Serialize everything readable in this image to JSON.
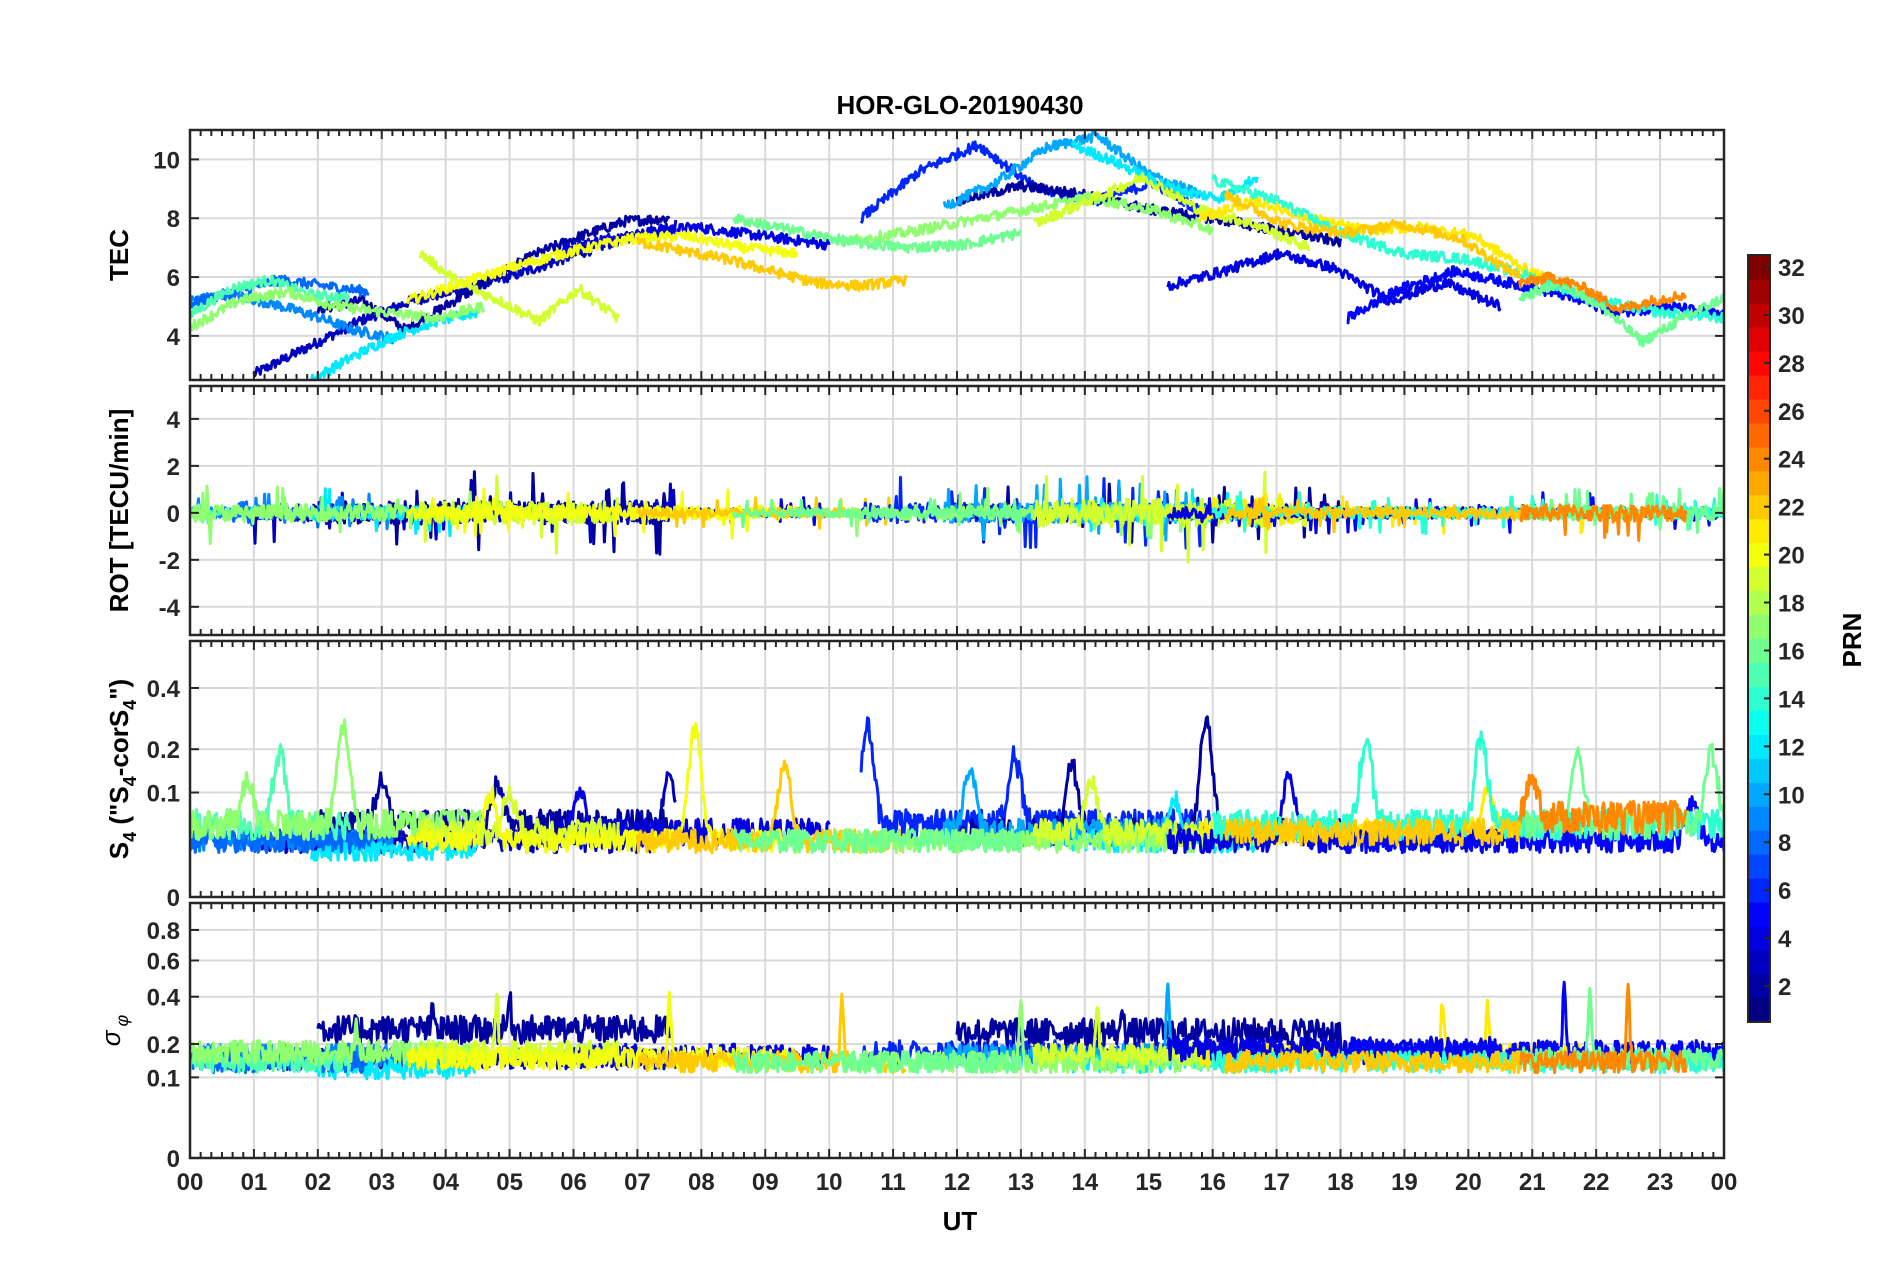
{
  "chart_data": {
    "type": "line",
    "title": "HOR-GLO-20190430",
    "xlabel": "UT",
    "x_ticks": [
      "00",
      "01",
      "02",
      "03",
      "04",
      "05",
      "06",
      "07",
      "08",
      "09",
      "10",
      "11",
      "12",
      "13",
      "14",
      "15",
      "16",
      "17",
      "18",
      "19",
      "20",
      "21",
      "22",
      "23",
      "00"
    ],
    "xlim": [
      0,
      24
    ],
    "grid": true,
    "panels": [
      {
        "id": "tec",
        "ylabel": "TEC",
        "ylim": [
          2.5,
          11
        ],
        "yticks": [
          4,
          6,
          8,
          10
        ],
        "tick_labels": [
          "4",
          "6",
          "8",
          "10"
        ]
      },
      {
        "id": "rot",
        "ylabel": "ROT [TECU/min]",
        "ylim": [
          -5.2,
          5.4
        ],
        "yticks": [
          -4,
          -2,
          0,
          2,
          4
        ],
        "tick_labels": [
          "-4",
          "-2",
          "0",
          "2",
          "4"
        ]
      },
      {
        "id": "s4",
        "ylabel_main": "S",
        "ylabel_sub": "4",
        "ylabel_tail": " (\"S",
        "ylabel_sub2": "4",
        "ylabel_tail2": "-corS",
        "ylabel_sub3": "4",
        "ylabel_end": "\")",
        "ylim": [
          0,
          0.6
        ],
        "yticks": [
          0,
          0.1,
          0.2,
          0.4
        ],
        "tick_labels": [
          "0",
          "0.1",
          "0.2",
          "0.4"
        ],
        "scale": "sqrt"
      },
      {
        "id": "sigma",
        "ylabel_main": "σ",
        "ylabel_sub": "φ",
        "ylim": [
          0,
          1
        ],
        "yticks": [
          0,
          0.1,
          0.2,
          0.4,
          0.6,
          0.8
        ],
        "tick_labels": [
          "0",
          "0.1",
          "0.2",
          "0.4",
          "0.6",
          "0.8"
        ],
        "scale": "sqrt"
      }
    ],
    "colorbar": {
      "label": "PRN",
      "range": [
        1,
        32
      ],
      "ticks": [
        "2",
        "4",
        "6",
        "8",
        "10",
        "12",
        "14",
        "16",
        "18",
        "20",
        "22",
        "24",
        "26",
        "28",
        "30",
        "32"
      ],
      "colormap": "jet"
    },
    "series": [
      {
        "prn": 3,
        "t0": 1.0,
        "t1": 7.6,
        "tec": [
          2.7,
          3.6,
          4.5,
          5.2,
          5.6,
          6.1,
          6.7,
          7.3,
          7.8
        ],
        "rot_amp": 0.6,
        "s4_base": 0.03,
        "s4_peaks": [
          [
            7.5,
            0.12
          ]
        ],
        "sig_base": 0.15,
        "sig_peaks": []
      },
      {
        "prn": 2,
        "t0": 2.0,
        "t1": 7.5,
        "tec": [
          4.9,
          5.2,
          4.2,
          5.1,
          6.0,
          6.8,
          7.4,
          7.9,
          8.0
        ],
        "rot_amp": 0.8,
        "s4_base": 0.05,
        "s4_peaks": [
          [
            3.0,
            0.08
          ],
          [
            4.8,
            0.07
          ]
        ],
        "sig_base": 0.25,
        "sig_peaks": [
          [
            5.0,
            0.4
          ],
          [
            3.8,
            0.33
          ]
        ]
      },
      {
        "prn": 4,
        "t0": 5.8,
        "t1": 10.0,
        "tec": [
          6.9,
          7.3,
          7.5,
          7.7,
          7.5,
          7.3,
          7.1
        ],
        "rot_amp": 0.3,
        "s4_base": 0.04,
        "s4_peaks": [
          [
            6.1,
            0.07
          ]
        ],
        "sig_base": 0.16,
        "sig_peaks": []
      },
      {
        "prn": 9,
        "t0": 0.0,
        "t1": 3.2,
        "tec": [
          5.2,
          5.4,
          5.1,
          4.7,
          4.2,
          3.9
        ],
        "rot_amp": 0.4,
        "s4_base": 0.03,
        "s4_peaks": [],
        "sig_base": 0.16,
        "sig_peaks": []
      },
      {
        "prn": 12,
        "t0": 1.9,
        "t1": 4.5,
        "tec": [
          2.5,
          3.3,
          4.0,
          4.5,
          4.8
        ],
        "rot_amp": 0.5,
        "s4_base": 0.02,
        "s4_peaks": [],
        "sig_base": 0.12,
        "sig_peaks": []
      },
      {
        "prn": 8,
        "t0": 0.0,
        "t1": 2.8,
        "tec": [
          5.1,
          5.5,
          5.9,
          5.7,
          5.5
        ],
        "rot_amp": 0.3,
        "s4_base": 0.03,
        "s4_peaks": [],
        "sig_base": 0.14,
        "sig_peaks": []
      },
      {
        "prn": 15,
        "t0": 0.0,
        "t1": 2.5,
        "tec": [
          4.7,
          5.6,
          5.9,
          5.4,
          5.3
        ],
        "rot_amp": 0.3,
        "s4_base": 0.05,
        "s4_peaks": [
          [
            1.4,
            0.16
          ]
        ],
        "sig_base": 0.14,
        "sig_peaks": []
      },
      {
        "prn": 17,
        "t0": 0.0,
        "t1": 4.6,
        "tec": [
          4.3,
          5.2,
          5.5,
          5.0,
          4.8,
          4.6,
          5.0
        ],
        "rot_amp": 0.6,
        "s4_base": 0.05,
        "s4_peaks": [
          [
            0.9,
            0.09
          ],
          [
            2.4,
            0.25
          ]
        ],
        "sig_base": 0.17,
        "sig_peaks": [
          [
            2.6,
            0.27
          ]
        ]
      },
      {
        "prn": 19,
        "t0": 3.6,
        "t1": 6.7,
        "tec": [
          6.8,
          5.8,
          5.2,
          4.5,
          5.6,
          4.6
        ],
        "rot_amp": 0.8,
        "s4_base": 0.04,
        "s4_peaks": [
          [
            5.0,
            0.07
          ]
        ],
        "sig_base": 0.17,
        "sig_peaks": [
          [
            4.8,
            0.42
          ]
        ]
      },
      {
        "prn": 20,
        "t0": 3.4,
        "t1": 9.5,
        "tec": [
          5.2,
          5.8,
          6.4,
          6.9,
          7.3,
          7.4,
          7.0,
          6.8
        ],
        "rot_amp": 0.5,
        "s4_base": 0.03,
        "s4_peaks": [
          [
            7.9,
            0.27
          ],
          [
            4.7,
            0.08
          ]
        ],
        "sig_base": 0.15,
        "sig_peaks": [
          [
            7.5,
            0.42
          ]
        ]
      },
      {
        "prn": 22,
        "t0": 7.0,
        "t1": 11.2,
        "tec": [
          7.2,
          6.9,
          6.6,
          6.2,
          5.8,
          5.7,
          5.9
        ],
        "rot_amp": 0.3,
        "s4_base": 0.03,
        "s4_peaks": [
          [
            9.3,
            0.15
          ]
        ],
        "sig_base": 0.14,
        "sig_peaks": [
          [
            10.2,
            0.42
          ]
        ]
      },
      {
        "prn": 6,
        "t0": 10.5,
        "t1": 16.0,
        "tec": [
          8.0,
          9.6,
          10.5,
          9.0,
          8.6,
          9.2,
          8.0
        ],
        "rot_amp": 0.7,
        "s4_base": 0.05,
        "s4_peaks": [
          [
            10.6,
            0.25
          ],
          [
            12.9,
            0.15
          ]
        ],
        "sig_base": 0.17,
        "sig_peaks": []
      },
      {
        "prn": 2,
        "t0": 12.0,
        "t1": 18.0,
        "tec": [
          8.6,
          9.1,
          8.8,
          8.3,
          8.0,
          7.6,
          7.2
        ],
        "rot_amp": 0.6,
        "s4_base": 0.04,
        "s4_peaks": [
          [
            13.8,
            0.14
          ],
          [
            15.9,
            0.27
          ]
        ],
        "sig_base": 0.24,
        "sig_peaks": [
          [
            14.6,
            0.33
          ],
          [
            15.7,
            0.26
          ]
        ]
      },
      {
        "prn": 10,
        "t0": 11.8,
        "t1": 15.8,
        "tec": [
          8.4,
          9.2,
          10.4,
          10.8,
          9.5,
          8.8
        ],
        "rot_amp": 0.7,
        "s4_base": 0.04,
        "s4_peaks": [
          [
            12.2,
            0.12
          ]
        ],
        "sig_base": 0.16,
        "sig_peaks": [
          [
            15.3,
            0.45
          ]
        ]
      },
      {
        "prn": 12,
        "t0": 13.8,
        "t1": 16.7,
        "tec": [
          10.5,
          10.0,
          9.4,
          8.9,
          8.7,
          9.4
        ],
        "rot_amp": 0.6,
        "s4_base": 0.03,
        "s4_peaks": [
          [
            15.4,
            0.07
          ]
        ],
        "sig_base": 0.14,
        "sig_peaks": []
      },
      {
        "prn": 17,
        "t0": 10.2,
        "t1": 16.0,
        "tec": [
          7.2,
          7.5,
          7.9,
          8.3,
          8.7,
          8.3,
          7.6
        ],
        "rot_amp": 0.5,
        "s4_base": 0.03,
        "s4_peaks": [],
        "sig_base": 0.14,
        "sig_peaks": [
          [
            13.0,
            0.38
          ]
        ]
      },
      {
        "prn": 19,
        "t0": 13.2,
        "t1": 17.5,
        "tec": [
          7.8,
          8.6,
          9.4,
          8.3,
          7.8,
          7.0
        ],
        "rot_amp": 1.0,
        "s4_base": 0.04,
        "s4_peaks": [
          [
            14.1,
            0.09
          ]
        ],
        "sig_base": 0.16,
        "sig_peaks": [
          [
            14.2,
            0.36
          ]
        ]
      },
      {
        "prn": 16,
        "t0": 8.5,
        "t1": 13.0,
        "tec": [
          8.0,
          7.6,
          7.2,
          7.0,
          7.1,
          7.5
        ],
        "rot_amp": 0.3,
        "s4_base": 0.03,
        "s4_peaks": [],
        "sig_base": 0.14,
        "sig_peaks": []
      },
      {
        "prn": 21,
        "t0": 15.8,
        "t1": 21.8,
        "tec": [
          8.0,
          8.6,
          8.0,
          7.6,
          7.7,
          7.4,
          6.2,
          5.4
        ],
        "rot_amp": 0.4,
        "s4_base": 0.04,
        "s4_peaks": [
          [
            20.3,
            0.07
          ]
        ],
        "sig_base": 0.16,
        "sig_peaks": [
          [
            19.6,
            0.38
          ],
          [
            20.3,
            0.35
          ]
        ]
      },
      {
        "prn": 4,
        "t0": 15.3,
        "t1": 20.5,
        "tec": [
          5.7,
          6.2,
          6.8,
          6.3,
          5.2,
          5.8,
          5.0
        ],
        "rot_amp": 0.4,
        "s4_base": 0.03,
        "s4_peaks": [
          [
            17.2,
            0.12
          ]
        ],
        "sig_base": 0.18,
        "sig_peaks": []
      },
      {
        "prn": 5,
        "t0": 18.1,
        "t1": 24.0,
        "tec": [
          4.6,
          5.6,
          6.2,
          5.8,
          5.4,
          4.8,
          5.0,
          4.7
        ],
        "rot_amp": 0.4,
        "s4_base": 0.03,
        "s4_peaks": [
          [
            23.5,
            0.06
          ]
        ],
        "sig_base": 0.17,
        "sig_peaks": [
          [
            21.5,
            0.5
          ]
        ]
      },
      {
        "prn": 14,
        "t0": 16.0,
        "t1": 24.0,
        "tec": [
          9.3,
          8.6,
          7.5,
          6.8,
          6.6,
          6.0,
          5.2,
          4.8,
          4.6
        ],
        "rot_amp": 0.4,
        "s4_base": 0.05,
        "s4_peaks": [
          [
            18.4,
            0.2
          ],
          [
            20.2,
            0.21
          ]
        ],
        "sig_base": 0.14,
        "sig_peaks": []
      },
      {
        "prn": 16,
        "t0": 20.8,
        "t1": 24.0,
        "tec": [
          5.3,
          5.8,
          5.0,
          3.8,
          4.6,
          5.3
        ],
        "rot_amp": 0.5,
        "s4_base": 0.05,
        "s4_peaks": [
          [
            21.7,
            0.15
          ],
          [
            23.8,
            0.18
          ]
        ],
        "sig_base": 0.15,
        "sig_peaks": [
          [
            21.9,
            0.43
          ]
        ]
      },
      {
        "prn": 24,
        "t0": 20.8,
        "t1": 23.4,
        "tec": [
          5.8,
          6.0,
          5.6,
          4.9,
          5.2,
          5.4
        ],
        "rot_amp": 0.6,
        "s4_base": 0.06,
        "s4_peaks": [
          [
            21.0,
            0.08
          ]
        ],
        "sig_base": 0.14,
        "sig_peaks": [
          [
            22.5,
            0.45
          ]
        ]
      },
      {
        "prn": 22,
        "t0": 16.2,
        "t1": 20.8,
        "tec": [
          8.8,
          7.8,
          7.5,
          7.8,
          7.3,
          6.0
        ],
        "rot_amp": 0.4,
        "s4_base": 0.04,
        "s4_peaks": [],
        "sig_base": 0.14,
        "sig_peaks": []
      }
    ]
  }
}
